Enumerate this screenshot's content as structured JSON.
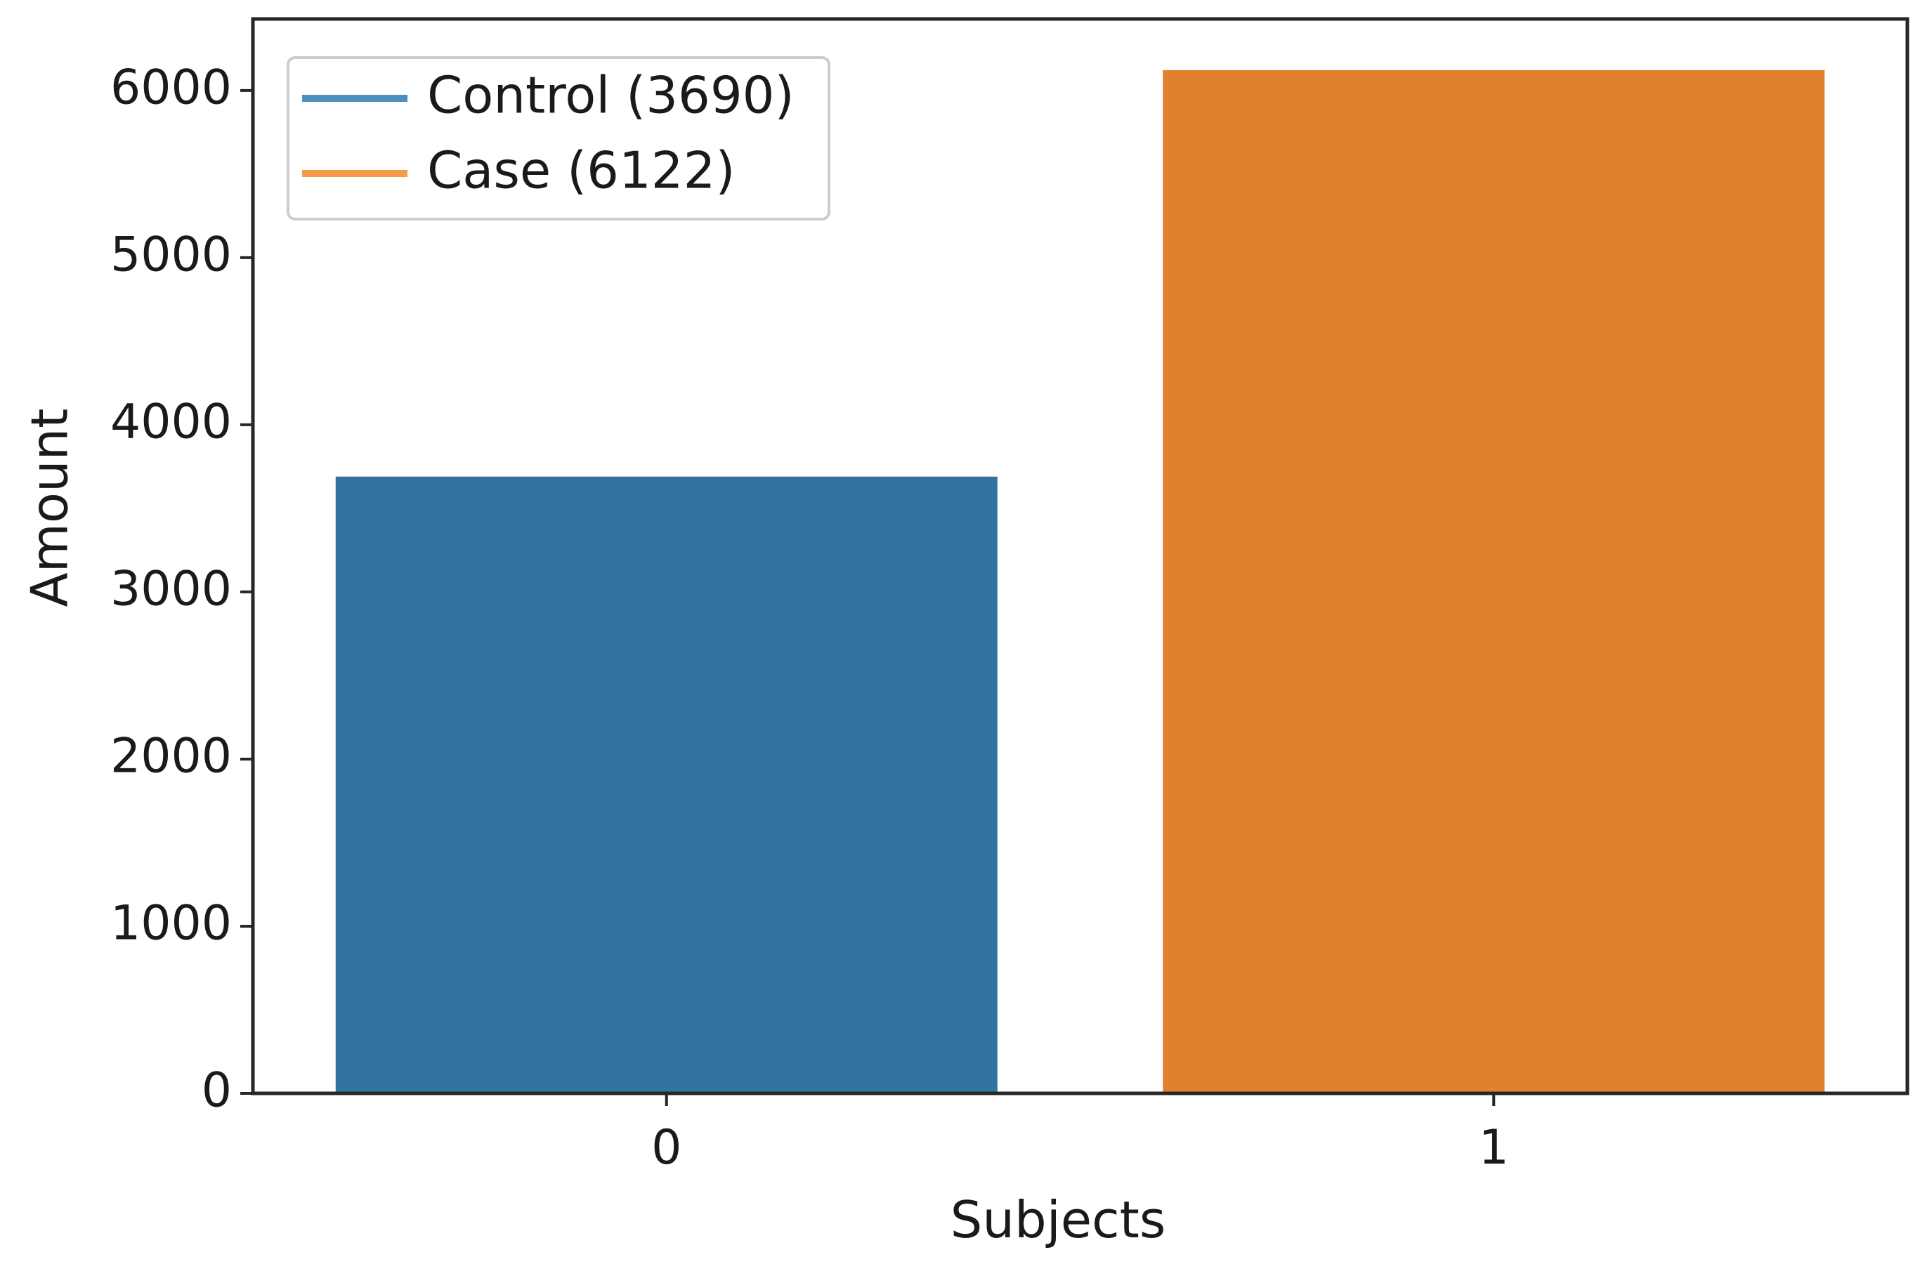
{
  "chart_data": {
    "type": "bar",
    "title": "",
    "xlabel": "Subjects",
    "ylabel": "Amount",
    "categories": [
      "0",
      "1"
    ],
    "values": [
      3690,
      6122
    ],
    "bar_colors": [
      "#3274a1",
      "#e1812c"
    ],
    "ylim": [
      0,
      6428
    ],
    "yticks": [
      0,
      1000,
      2000,
      3000,
      4000,
      5000,
      6000
    ],
    "ytick_labels": [
      "0",
      "1000",
      "2000",
      "3000",
      "4000",
      "5000",
      "6000"
    ],
    "grid": false,
    "legend": {
      "placement": "top-left",
      "entries": [
        {
          "label": "Control (3690)",
          "color": "#4c8ec1"
        },
        {
          "label": "Case (6122)",
          "color": "#f39a4b"
        }
      ]
    }
  }
}
